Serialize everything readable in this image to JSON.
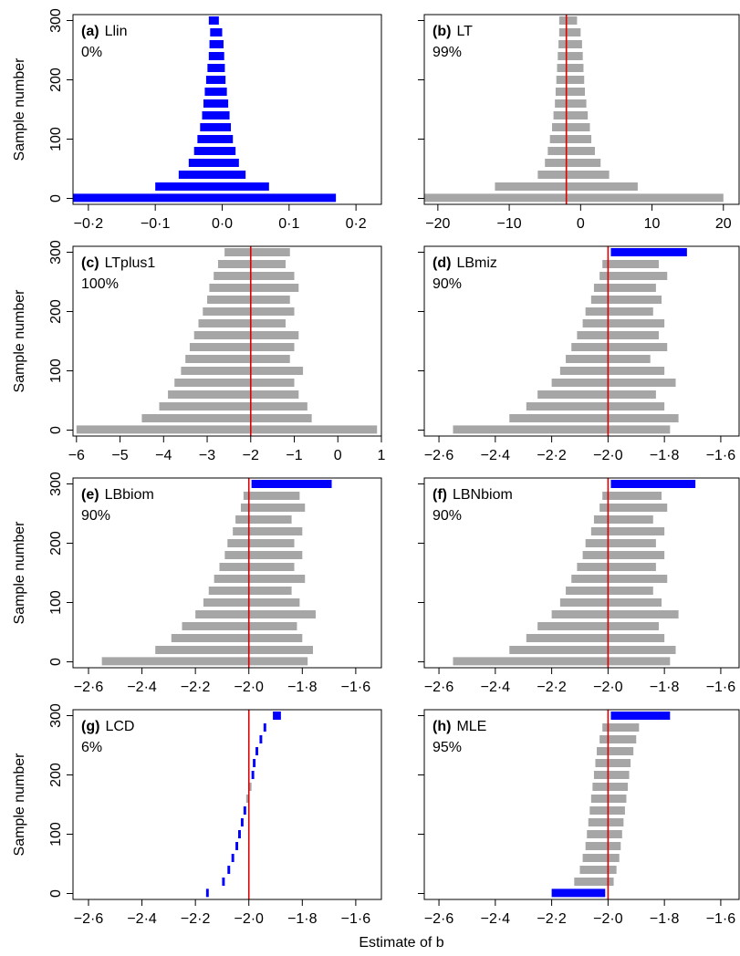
{
  "chart_data": [
    {
      "type": "interval",
      "title": "(a)",
      "method": "Llin",
      "coverage": "0%",
      "ylabel": "Sample number",
      "xlim": [
        -0.223,
        0.238
      ],
      "xticks": [
        {
          "value": -0.2,
          "label": "−0·2"
        },
        {
          "value": -0.1,
          "label": "−0·1"
        },
        {
          "value": 0,
          "label": "0·0"
        },
        {
          "value": 0.1,
          "label": "0·1"
        },
        {
          "value": 0.2,
          "label": "0·2"
        }
      ],
      "ylim": [
        -10,
        310
      ],
      "yticks": [
        0,
        100,
        200,
        300
      ],
      "samples": [
        1,
        20,
        40,
        60,
        80,
        100,
        120,
        140,
        160,
        180,
        200,
        220,
        240,
        260,
        280,
        300
      ],
      "lower": [
        -0.24,
        -0.1,
        -0.065,
        -0.05,
        -0.042,
        -0.037,
        -0.033,
        -0.03,
        -0.028,
        -0.026,
        -0.024,
        -0.022,
        -0.02,
        -0.019,
        -0.018,
        -0.02
      ],
      "upper": [
        0.17,
        0.07,
        0.035,
        0.025,
        0.02,
        0.016,
        0.013,
        0.011,
        0.009,
        0.007,
        0.005,
        0.004,
        0.003,
        0.002,
        0.0,
        -0.005
      ],
      "colors": [
        "#0000ff",
        "#0000ff",
        "#0000ff",
        "#0000ff",
        "#0000ff",
        "#0000ff",
        "#0000ff",
        "#0000ff",
        "#0000ff",
        "#0000ff",
        "#0000ff",
        "#0000ff",
        "#0000ff",
        "#0000ff",
        "#0000ff",
        "#0000ff"
      ]
    },
    {
      "type": "interval",
      "title": "(b)",
      "method": "LT",
      "coverage": "99%",
      "reference": -2,
      "reference_color": "#e00000",
      "xlim": [
        -21.9,
        22.2
      ],
      "xticks": [
        {
          "value": -20,
          "label": "−20"
        },
        {
          "value": -10,
          "label": "−10"
        },
        0,
        10,
        20
      ],
      "ylim": [
        -10,
        310
      ],
      "yticks": [
        0,
        100,
        200,
        300
      ],
      "samples": [
        1,
        20,
        40,
        60,
        80,
        100,
        120,
        140,
        160,
        180,
        200,
        220,
        240,
        260,
        280,
        300
      ],
      "lower": [
        -27,
        -12,
        -6,
        -5,
        -4.6,
        -4.3,
        -4,
        -3.8,
        -3.6,
        -3.5,
        -3.4,
        -3.3,
        -3.2,
        -3.1,
        -3.0,
        -3.0
      ],
      "upper": [
        20,
        8,
        4,
        2.8,
        2,
        1.5,
        1.3,
        1.0,
        0.8,
        0.6,
        0.5,
        0.4,
        0.3,
        0.2,
        0,
        -0.5
      ],
      "colors": [
        "#a6a6a6",
        "#a6a6a6",
        "#a6a6a6",
        "#a6a6a6",
        "#a6a6a6",
        "#a6a6a6",
        "#a6a6a6",
        "#a6a6a6",
        "#a6a6a6",
        "#a6a6a6",
        "#a6a6a6",
        "#a6a6a6",
        "#a6a6a6",
        "#a6a6a6",
        "#a6a6a6",
        "#a6a6a6"
      ]
    },
    {
      "type": "interval",
      "title": "(c)",
      "method": "LTplus1",
      "coverage": "100%",
      "ylabel": "Sample number",
      "reference": -2,
      "reference_color": "#e00000",
      "xlim": [
        -6.08,
        1.0
      ],
      "xticks": [
        {
          "value": -6,
          "label": "−6"
        },
        {
          "value": -5,
          "label": "−5"
        },
        {
          "value": -4,
          "label": "−4"
        },
        {
          "value": -3,
          "label": "−3"
        },
        {
          "value": -2,
          "label": "−2"
        },
        {
          "value": -1,
          "label": "−1"
        },
        0,
        1
      ],
      "ylim": [
        -10,
        310
      ],
      "yticks": [
        0,
        100,
        200,
        300
      ],
      "samples": [
        1,
        20,
        40,
        60,
        80,
        100,
        120,
        140,
        160,
        180,
        200,
        220,
        240,
        260,
        280,
        300
      ],
      "lower": [
        -6,
        -4.5,
        -4.1,
        -3.9,
        -3.75,
        -3.6,
        -3.5,
        -3.4,
        -3.3,
        -3.2,
        -3.1,
        -3.0,
        -2.95,
        -2.85,
        -2.75,
        -2.6
      ],
      "upper": [
        0.9,
        -0.6,
        -0.7,
        -0.9,
        -1.0,
        -0.8,
        -1.1,
        -1.0,
        -0.9,
        -1.2,
        -1.0,
        -1.1,
        -0.9,
        -1.0,
        -1.2,
        -1.1
      ],
      "colors": [
        "#a6a6a6",
        "#a6a6a6",
        "#a6a6a6",
        "#a6a6a6",
        "#a6a6a6",
        "#a6a6a6",
        "#a6a6a6",
        "#a6a6a6",
        "#a6a6a6",
        "#a6a6a6",
        "#a6a6a6",
        "#a6a6a6",
        "#a6a6a6",
        "#a6a6a6",
        "#a6a6a6",
        "#a6a6a6"
      ]
    },
    {
      "type": "interval",
      "title": "(d)",
      "method": "LBmiz",
      "coverage": "90%",
      "reference": -2,
      "reference_color": "#e00000",
      "xlim": [
        -2.652,
        -1.535
      ],
      "xticks": [
        {
          "value": -2.6,
          "label": "−2·6"
        },
        {
          "value": -2.4,
          "label": "−2·4"
        },
        {
          "value": -2.2,
          "label": "−2·2"
        },
        {
          "value": -2.0,
          "label": "−2·0"
        },
        {
          "value": -1.8,
          "label": "−1·8"
        },
        {
          "value": -1.6,
          "label": "−1·6"
        }
      ],
      "ylim": [
        -10,
        310
      ],
      "yticks": [
        0,
        100,
        200,
        300
      ],
      "samples": [
        1,
        20,
        40,
        60,
        80,
        100,
        120,
        140,
        160,
        180,
        200,
        220,
        240,
        260,
        280,
        300
      ],
      "lower": [
        -2.55,
        -2.35,
        -2.29,
        -2.25,
        -2.2,
        -2.17,
        -2.15,
        -2.13,
        -2.11,
        -2.09,
        -2.08,
        -2.06,
        -2.05,
        -2.03,
        -2.02,
        -1.99
      ],
      "upper": [
        -1.78,
        -1.75,
        -1.8,
        -1.83,
        -1.76,
        -1.8,
        -1.85,
        -1.79,
        -1.82,
        -1.8,
        -1.84,
        -1.81,
        -1.83,
        -1.79,
        -1.82,
        -1.72
      ],
      "colors": [
        "#a6a6a6",
        "#a6a6a6",
        "#a6a6a6",
        "#a6a6a6",
        "#a6a6a6",
        "#a6a6a6",
        "#a6a6a6",
        "#a6a6a6",
        "#a6a6a6",
        "#a6a6a6",
        "#a6a6a6",
        "#a6a6a6",
        "#a6a6a6",
        "#a6a6a6",
        "#a6a6a6",
        "#0000ff"
      ]
    },
    {
      "type": "interval",
      "title": "(e)",
      "method": "LBbiom",
      "coverage": "90%",
      "ylabel": "Sample number",
      "reference": -2,
      "reference_color": "#e00000",
      "xlim": [
        -2.658,
        -1.504
      ],
      "xticks": [
        {
          "value": -2.6,
          "label": "−2·6"
        },
        {
          "value": -2.4,
          "label": "−2·4"
        },
        {
          "value": -2.2,
          "label": "−2·2"
        },
        {
          "value": -2.0,
          "label": "−2·0"
        },
        {
          "value": -1.8,
          "label": "−1·8"
        },
        {
          "value": -1.6,
          "label": "−1·6"
        }
      ],
      "ylim": [
        -10,
        310
      ],
      "yticks": [
        0,
        100,
        200,
        300
      ],
      "samples": [
        1,
        20,
        40,
        60,
        80,
        100,
        120,
        140,
        160,
        180,
        200,
        220,
        240,
        260,
        280,
        300
      ],
      "lower": [
        -2.55,
        -2.35,
        -2.29,
        -2.25,
        -2.2,
        -2.17,
        -2.15,
        -2.13,
        -2.11,
        -2.09,
        -2.08,
        -2.06,
        -2.05,
        -2.03,
        -2.02,
        -1.99
      ],
      "upper": [
        -1.78,
        -1.76,
        -1.8,
        -1.82,
        -1.75,
        -1.81,
        -1.84,
        -1.79,
        -1.83,
        -1.8,
        -1.83,
        -1.8,
        -1.84,
        -1.79,
        -1.81,
        -1.69
      ],
      "colors": [
        "#a6a6a6",
        "#a6a6a6",
        "#a6a6a6",
        "#a6a6a6",
        "#a6a6a6",
        "#a6a6a6",
        "#a6a6a6",
        "#a6a6a6",
        "#a6a6a6",
        "#a6a6a6",
        "#a6a6a6",
        "#a6a6a6",
        "#a6a6a6",
        "#a6a6a6",
        "#a6a6a6",
        "#0000ff"
      ]
    },
    {
      "type": "interval",
      "title": "(f)",
      "method": "LBNbiom",
      "coverage": "90%",
      "reference": -2,
      "reference_color": "#e00000",
      "xlim": [
        -2.652,
        -1.535
      ],
      "xticks": [
        {
          "value": -2.6,
          "label": "−2·6"
        },
        {
          "value": -2.4,
          "label": "−2·4"
        },
        {
          "value": -2.2,
          "label": "−2·2"
        },
        {
          "value": -2.0,
          "label": "−2·0"
        },
        {
          "value": -1.8,
          "label": "−1·8"
        },
        {
          "value": -1.6,
          "label": "−1·6"
        }
      ],
      "ylim": [
        -10,
        310
      ],
      "yticks": [
        0,
        100,
        200,
        300
      ],
      "samples": [
        1,
        20,
        40,
        60,
        80,
        100,
        120,
        140,
        160,
        180,
        200,
        220,
        240,
        260,
        280,
        300
      ],
      "lower": [
        -2.55,
        -2.35,
        -2.29,
        -2.25,
        -2.2,
        -2.17,
        -2.15,
        -2.13,
        -2.11,
        -2.09,
        -2.08,
        -2.06,
        -2.05,
        -2.03,
        -2.02,
        -1.99
      ],
      "upper": [
        -1.78,
        -1.76,
        -1.8,
        -1.82,
        -1.75,
        -1.81,
        -1.84,
        -1.79,
        -1.83,
        -1.8,
        -1.83,
        -1.8,
        -1.84,
        -1.79,
        -1.81,
        -1.69
      ],
      "colors": [
        "#a6a6a6",
        "#a6a6a6",
        "#a6a6a6",
        "#a6a6a6",
        "#a6a6a6",
        "#a6a6a6",
        "#a6a6a6",
        "#a6a6a6",
        "#a6a6a6",
        "#a6a6a6",
        "#a6a6a6",
        "#a6a6a6",
        "#a6a6a6",
        "#a6a6a6",
        "#a6a6a6",
        "#0000ff"
      ]
    },
    {
      "type": "interval",
      "title": "(g)",
      "method": "LCD",
      "coverage": "6%",
      "ylabel": "Sample number",
      "reference": -2,
      "reference_color": "#e00000",
      "xlim": [
        -2.658,
        -1.504
      ],
      "xticks": [
        {
          "value": -2.6,
          "label": "−2·6"
        },
        {
          "value": -2.4,
          "label": "−2·4"
        },
        {
          "value": -2.2,
          "label": "−2·2"
        },
        {
          "value": -2.0,
          "label": "−2·0"
        },
        {
          "value": -1.8,
          "label": "−1·8"
        },
        {
          "value": -1.6,
          "label": "−1·6"
        }
      ],
      "ylim": [
        -10,
        310
      ],
      "yticks": [
        0,
        100,
        200,
        300
      ],
      "samples": [
        1,
        20,
        40,
        60,
        80,
        100,
        120,
        140,
        160,
        180,
        200,
        220,
        240,
        260,
        280,
        300
      ],
      "lower": [
        -2.16,
        -2.1,
        -2.08,
        -2.065,
        -2.05,
        -2.04,
        -2.03,
        -2.02,
        -2.01,
        -2.0,
        -1.99,
        -1.985,
        -1.975,
        -1.96,
        -1.945,
        -1.91
      ],
      "upper": [
        -2.15,
        -2.09,
        -2.07,
        -2.055,
        -2.04,
        -2.03,
        -2.02,
        -2.01,
        -2.0,
        -1.99,
        -1.98,
        -1.975,
        -1.965,
        -1.95,
        -1.935,
        -1.88
      ],
      "colors": [
        "#0000ff",
        "#0000ff",
        "#0000ff",
        "#0000ff",
        "#0000ff",
        "#0000ff",
        "#0000ff",
        "#0000ff",
        "#a6a6a6",
        "#a6a6a6",
        "#0000ff",
        "#0000ff",
        "#0000ff",
        "#0000ff",
        "#0000ff",
        "#0000ff"
      ]
    },
    {
      "type": "interval",
      "title": "(h)",
      "method": "MLE",
      "coverage": "95%",
      "reference": -2,
      "reference_color": "#e00000",
      "xlim": [
        -2.652,
        -1.535
      ],
      "xticks": [
        {
          "value": -2.6,
          "label": "−2·6"
        },
        {
          "value": -2.4,
          "label": "−2·4"
        },
        {
          "value": -2.2,
          "label": "−2·2"
        },
        {
          "value": -2.0,
          "label": "−2·0"
        },
        {
          "value": -1.8,
          "label": "−1·8"
        },
        {
          "value": -1.6,
          "label": "−1·6"
        }
      ],
      "ylim": [
        -10,
        310
      ],
      "yticks": [
        0,
        100,
        200,
        300
      ],
      "samples": [
        1,
        20,
        40,
        60,
        80,
        100,
        120,
        140,
        160,
        180,
        200,
        220,
        240,
        260,
        280,
        300
      ],
      "lower": [
        -2.2,
        -2.12,
        -2.1,
        -2.09,
        -2.08,
        -2.075,
        -2.07,
        -2.065,
        -2.06,
        -2.055,
        -2.05,
        -2.045,
        -2.04,
        -2.03,
        -2.02,
        -1.99
      ],
      "upper": [
        -2.01,
        -1.98,
        -1.97,
        -1.96,
        -1.955,
        -1.95,
        -1.945,
        -1.94,
        -1.935,
        -1.93,
        -1.925,
        -1.92,
        -1.91,
        -1.9,
        -1.89,
        -1.78
      ],
      "colors": [
        "#0000ff",
        "#a6a6a6",
        "#a6a6a6",
        "#a6a6a6",
        "#a6a6a6",
        "#a6a6a6",
        "#a6a6a6",
        "#a6a6a6",
        "#a6a6a6",
        "#a6a6a6",
        "#a6a6a6",
        "#a6a6a6",
        "#a6a6a6",
        "#a6a6a6",
        "#a6a6a6",
        "#0000ff"
      ]
    }
  ],
  "xlabel": "Estimate of b"
}
